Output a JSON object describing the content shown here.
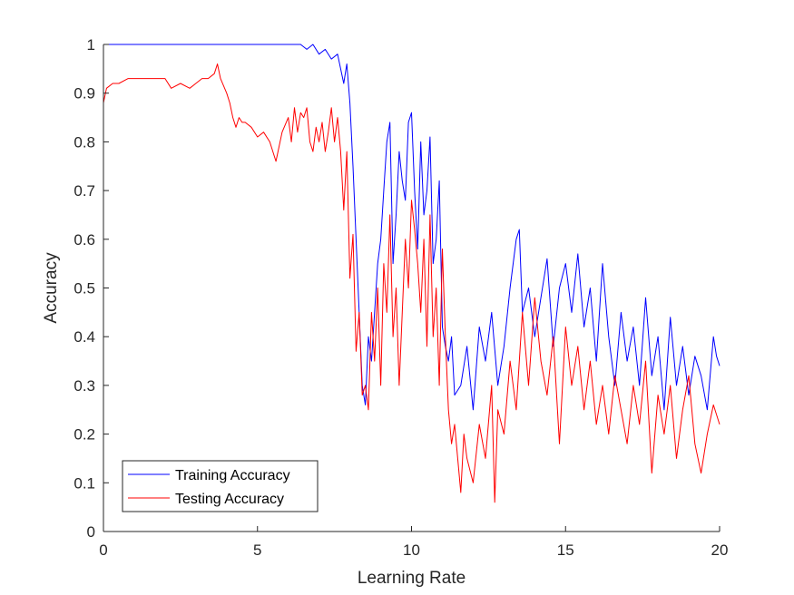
{
  "chart_data": {
    "type": "line",
    "title": "",
    "xlabel": "Learning Rate",
    "ylabel": "Accuracy",
    "xlim": [
      0,
      20
    ],
    "ylim": [
      0,
      1
    ],
    "xticks": [
      0,
      5,
      10,
      15,
      20
    ],
    "yticks": [
      0,
      0.1,
      0.2,
      0.3,
      0.4,
      0.5,
      0.6,
      0.7,
      0.8,
      0.9,
      1
    ],
    "grid": false,
    "legend_position": "bottom-left",
    "series": [
      {
        "name": "Training Accuracy",
        "color": "#0000ff",
        "x": [
          0,
          0.5,
          1,
          1.5,
          2,
          2.5,
          3,
          3.5,
          4,
          4.5,
          5,
          5.5,
          6,
          6.2,
          6.4,
          6.6,
          6.8,
          7,
          7.2,
          7.4,
          7.6,
          7.7,
          7.8,
          7.9,
          8,
          8.1,
          8.2,
          8.3,
          8.4,
          8.5,
          8.6,
          8.7,
          8.8,
          8.9,
          9,
          9.1,
          9.2,
          9.3,
          9.4,
          9.5,
          9.6,
          9.7,
          9.8,
          9.9,
          10,
          10.1,
          10.2,
          10.3,
          10.4,
          10.5,
          10.6,
          10.7,
          10.8,
          10.9,
          11,
          11.1,
          11.2,
          11.3,
          11.4,
          11.6,
          11.8,
          12,
          12.2,
          12.4,
          12.6,
          12.8,
          13,
          13.2,
          13.4,
          13.5,
          13.6,
          13.8,
          14,
          14.2,
          14.4,
          14.6,
          14.8,
          15,
          15.2,
          15.4,
          15.6,
          15.8,
          16,
          16.2,
          16.4,
          16.6,
          16.8,
          17,
          17.2,
          17.4,
          17.6,
          17.8,
          18,
          18.2,
          18.4,
          18.6,
          18.8,
          19,
          19.2,
          19.4,
          19.6,
          19.8,
          19.9,
          20
        ],
        "y": [
          1,
          1,
          1,
          1,
          1,
          1,
          1,
          1,
          1,
          1,
          1,
          1,
          1,
          1,
          1,
          0.99,
          1,
          0.98,
          0.99,
          0.97,
          0.98,
          0.95,
          0.92,
          0.96,
          0.88,
          0.75,
          0.6,
          0.45,
          0.3,
          0.26,
          0.4,
          0.35,
          0.45,
          0.55,
          0.6,
          0.7,
          0.8,
          0.84,
          0.55,
          0.65,
          0.78,
          0.72,
          0.68,
          0.84,
          0.86,
          0.7,
          0.58,
          0.8,
          0.65,
          0.7,
          0.81,
          0.55,
          0.6,
          0.72,
          0.42,
          0.38,
          0.35,
          0.4,
          0.28,
          0.3,
          0.38,
          0.25,
          0.42,
          0.35,
          0.45,
          0.3,
          0.38,
          0.5,
          0.6,
          0.62,
          0.45,
          0.5,
          0.4,
          0.48,
          0.56,
          0.38,
          0.5,
          0.55,
          0.45,
          0.57,
          0.42,
          0.5,
          0.35,
          0.55,
          0.4,
          0.3,
          0.45,
          0.35,
          0.42,
          0.3,
          0.48,
          0.32,
          0.4,
          0.25,
          0.44,
          0.3,
          0.38,
          0.28,
          0.36,
          0.32,
          0.25,
          0.4,
          0.36,
          0.34
        ]
      },
      {
        "name": "Testing Accuracy",
        "color": "#ff0000",
        "x": [
          0,
          0.1,
          0.3,
          0.5,
          0.8,
          1,
          1.5,
          2,
          2.2,
          2.5,
          2.8,
          3,
          3.2,
          3.4,
          3.6,
          3.7,
          3.8,
          4,
          4.1,
          4.2,
          4.3,
          4.4,
          4.5,
          4.6,
          4.8,
          5,
          5.2,
          5.4,
          5.6,
          5.8,
          6,
          6.1,
          6.2,
          6.3,
          6.4,
          6.5,
          6.6,
          6.7,
          6.8,
          6.9,
          7,
          7.1,
          7.2,
          7.3,
          7.4,
          7.5,
          7.6,
          7.7,
          7.8,
          7.9,
          8,
          8.1,
          8.2,
          8.3,
          8.4,
          8.5,
          8.6,
          8.7,
          8.8,
          8.9,
          9,
          9.1,
          9.2,
          9.3,
          9.4,
          9.5,
          9.6,
          9.7,
          9.8,
          9.9,
          10,
          10.1,
          10.2,
          10.3,
          10.4,
          10.5,
          10.6,
          10.7,
          10.8,
          10.9,
          11,
          11.1,
          11.2,
          11.3,
          11.4,
          11.6,
          11.7,
          11.8,
          12,
          12.2,
          12.4,
          12.6,
          12.7,
          12.8,
          13,
          13.2,
          13.4,
          13.6,
          13.8,
          14,
          14.2,
          14.4,
          14.6,
          14.8,
          15,
          15.2,
          15.4,
          15.6,
          15.8,
          16,
          16.2,
          16.4,
          16.6,
          16.8,
          17,
          17.2,
          17.4,
          17.6,
          17.8,
          18,
          18.2,
          18.4,
          18.6,
          18.8,
          19,
          19.2,
          19.4,
          19.6,
          19.8,
          20
        ],
        "y": [
          0.88,
          0.91,
          0.92,
          0.92,
          0.93,
          0.93,
          0.93,
          0.93,
          0.91,
          0.92,
          0.91,
          0.92,
          0.93,
          0.93,
          0.94,
          0.96,
          0.93,
          0.9,
          0.88,
          0.85,
          0.83,
          0.85,
          0.84,
          0.84,
          0.83,
          0.81,
          0.82,
          0.8,
          0.76,
          0.82,
          0.85,
          0.8,
          0.87,
          0.82,
          0.86,
          0.85,
          0.87,
          0.8,
          0.78,
          0.83,
          0.8,
          0.84,
          0.78,
          0.82,
          0.87,
          0.8,
          0.85,
          0.78,
          0.66,
          0.78,
          0.52,
          0.61,
          0.37,
          0.45,
          0.28,
          0.3,
          0.25,
          0.45,
          0.35,
          0.5,
          0.3,
          0.55,
          0.45,
          0.65,
          0.4,
          0.5,
          0.3,
          0.45,
          0.6,
          0.5,
          0.68,
          0.62,
          0.55,
          0.45,
          0.6,
          0.38,
          0.65,
          0.4,
          0.5,
          0.3,
          0.58,
          0.4,
          0.25,
          0.18,
          0.22,
          0.08,
          0.2,
          0.15,
          0.1,
          0.22,
          0.15,
          0.3,
          0.06,
          0.25,
          0.2,
          0.35,
          0.25,
          0.45,
          0.3,
          0.48,
          0.35,
          0.28,
          0.4,
          0.18,
          0.42,
          0.3,
          0.38,
          0.25,
          0.35,
          0.22,
          0.3,
          0.2,
          0.32,
          0.25,
          0.18,
          0.3,
          0.22,
          0.35,
          0.12,
          0.28,
          0.2,
          0.3,
          0.15,
          0.25,
          0.32,
          0.18,
          0.12,
          0.2,
          0.26,
          0.22
        ]
      }
    ]
  }
}
